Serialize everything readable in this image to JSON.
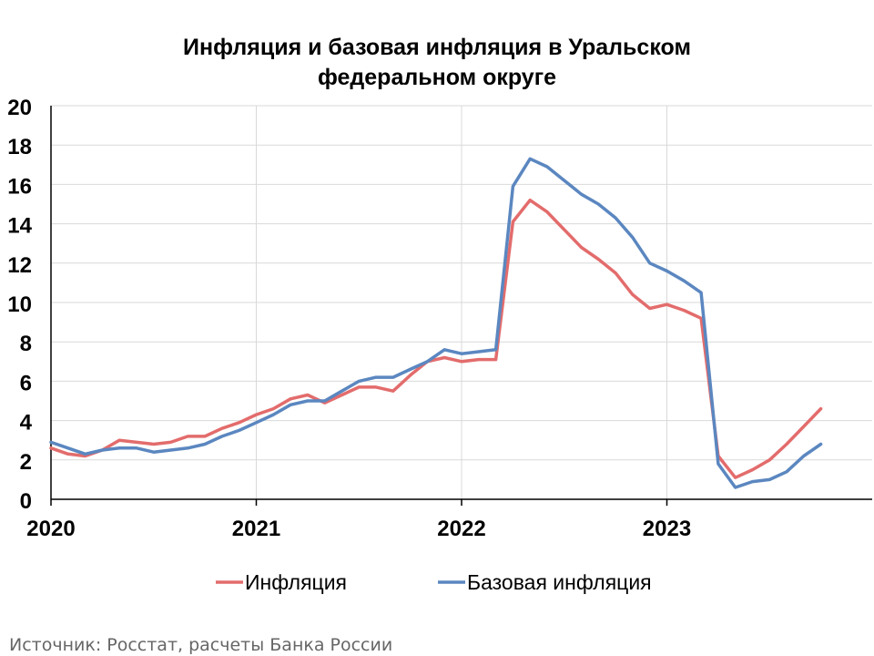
{
  "chart_data": {
    "type": "line",
    "title_line1": "Инфляция и базовая инфляция в Уральском",
    "title_line2": "федеральном округе",
    "xlabel": "",
    "ylabel": "",
    "ylim": [
      0,
      20
    ],
    "yticks": [
      0,
      2,
      4,
      6,
      8,
      10,
      12,
      14,
      16,
      18,
      20
    ],
    "x_start": "2020-01",
    "x_end": "2024-01",
    "x_tick_labels": [
      "2020",
      "2021",
      "2022",
      "2023"
    ],
    "grid": "horizontal",
    "legend_position": "bottom",
    "series": [
      {
        "name": "Инфляция",
        "color": "#e36c6c",
        "values": [
          2.6,
          2.3,
          2.2,
          2.5,
          3.0,
          2.9,
          2.8,
          2.9,
          3.2,
          3.2,
          3.6,
          3.9,
          4.3,
          4.6,
          5.1,
          5.3,
          4.9,
          5.3,
          5.7,
          5.7,
          5.5,
          6.3,
          7.0,
          7.2,
          7.0,
          7.1,
          7.1,
          14.1,
          15.2,
          14.6,
          13.7,
          12.8,
          12.2,
          11.5,
          10.4,
          9.7,
          9.9,
          9.6,
          9.2,
          2.2,
          1.1,
          1.5,
          2.0,
          2.8,
          3.7,
          4.6
        ]
      },
      {
        "name": "Базовая инфляция",
        "color": "#5b87c0",
        "values": [
          2.9,
          2.6,
          2.3,
          2.5,
          2.6,
          2.6,
          2.4,
          2.5,
          2.6,
          2.8,
          3.2,
          3.5,
          3.9,
          4.3,
          4.8,
          5.0,
          5.0,
          5.5,
          6.0,
          6.2,
          6.2,
          6.6,
          7.0,
          7.6,
          7.4,
          7.5,
          7.6,
          15.9,
          17.3,
          16.9,
          16.2,
          15.5,
          15.0,
          14.3,
          13.3,
          12.0,
          11.6,
          11.1,
          10.5,
          1.8,
          0.6,
          0.9,
          1.0,
          1.4,
          2.2,
          2.8
        ]
      }
    ]
  },
  "source_text": "Источник: Росстат, расчеты Банка России"
}
